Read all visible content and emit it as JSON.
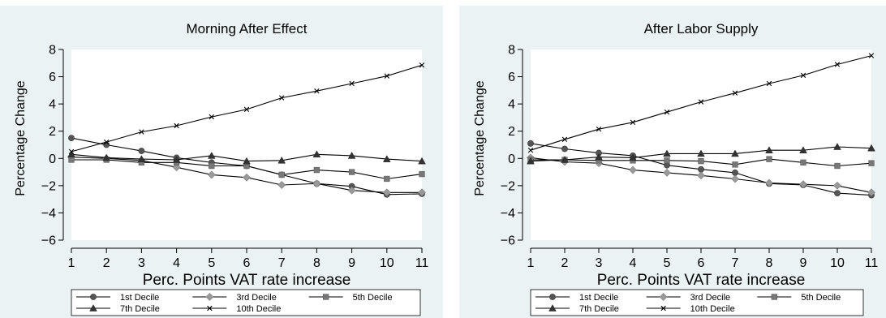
{
  "chart_data": [
    {
      "type": "line",
      "title": "Morning After Effect",
      "xlabel": "Perc. Points VAT rate increase",
      "ylabel": "Percentage Change",
      "x": [
        1,
        2,
        3,
        4,
        5,
        6,
        7,
        8,
        9,
        10,
        11
      ],
      "xlim": [
        1,
        11
      ],
      "ylim": [
        -6,
        8
      ],
      "yticks": [
        -6,
        -4,
        -2,
        0,
        2,
        4,
        6,
        8
      ],
      "grid": false,
      "legend_position": "bottom",
      "series": [
        {
          "name": "1st Decile",
          "marker": "circle",
          "color": "#555555",
          "values": [
            1.5,
            1.0,
            0.55,
            0.05,
            -0.3,
            -0.55,
            -1.2,
            -1.85,
            -2.05,
            -2.65,
            -2.6
          ]
        },
        {
          "name": "3rd Decile",
          "marker": "diamond",
          "color": "#999999",
          "values": [
            0.1,
            0.0,
            -0.15,
            -0.65,
            -1.2,
            -1.4,
            -1.95,
            -1.85,
            -2.35,
            -2.5,
            -2.5
          ]
        },
        {
          "name": "5th Decile",
          "marker": "square",
          "color": "#777777",
          "values": [
            -0.1,
            -0.1,
            -0.3,
            -0.3,
            -0.55,
            -0.55,
            -1.2,
            -0.85,
            -1.0,
            -1.5,
            -1.15
          ]
        },
        {
          "name": "7th Decile",
          "marker": "triangle",
          "color": "#333333",
          "values": [
            0.3,
            0.05,
            -0.05,
            -0.1,
            0.2,
            -0.2,
            -0.15,
            0.3,
            0.2,
            -0.05,
            -0.2
          ]
        },
        {
          "name": "10th Decile",
          "marker": "x",
          "color": "#000000",
          "values": [
            0.5,
            1.2,
            1.95,
            2.4,
            3.05,
            3.6,
            4.45,
            4.95,
            5.5,
            6.05,
            6.85
          ]
        }
      ]
    },
    {
      "type": "line",
      "title": "After Labor Supply",
      "xlabel": "Perc. Points VAT rate increase",
      "ylabel": "Percentage Change",
      "x": [
        1,
        2,
        3,
        4,
        5,
        6,
        7,
        8,
        9,
        10,
        11
      ],
      "xlim": [
        1,
        11
      ],
      "ylim": [
        -6,
        8
      ],
      "yticks": [
        -6,
        -4,
        -2,
        0,
        2,
        4,
        6,
        8
      ],
      "grid": false,
      "legend_position": "bottom",
      "series": [
        {
          "name": "1st Decile",
          "marker": "circle",
          "color": "#555555",
          "values": [
            1.1,
            0.7,
            0.4,
            0.2,
            -0.5,
            -0.8,
            -1.05,
            -1.85,
            -1.95,
            -2.55,
            -2.7
          ]
        },
        {
          "name": "3rd Decile",
          "marker": "diamond",
          "color": "#999999",
          "values": [
            0.05,
            -0.25,
            -0.35,
            -0.85,
            -1.05,
            -1.25,
            -1.5,
            -1.8,
            -1.9,
            -2.0,
            -2.5
          ]
        },
        {
          "name": "5th Decile",
          "marker": "square",
          "color": "#777777",
          "values": [
            -0.1,
            -0.1,
            -0.15,
            -0.15,
            -0.15,
            -0.2,
            -0.45,
            -0.05,
            -0.3,
            -0.55,
            -0.35
          ]
        },
        {
          "name": "7th Decile",
          "marker": "triangle",
          "color": "#333333",
          "values": [
            -0.2,
            -0.1,
            0.1,
            0.05,
            0.35,
            0.35,
            0.35,
            0.6,
            0.6,
            0.85,
            0.75
          ]
        },
        {
          "name": "10th Decile",
          "marker": "x",
          "color": "#000000",
          "values": [
            0.6,
            1.4,
            2.15,
            2.65,
            3.4,
            4.15,
            4.8,
            5.5,
            6.1,
            6.9,
            7.55
          ]
        }
      ]
    }
  ]
}
